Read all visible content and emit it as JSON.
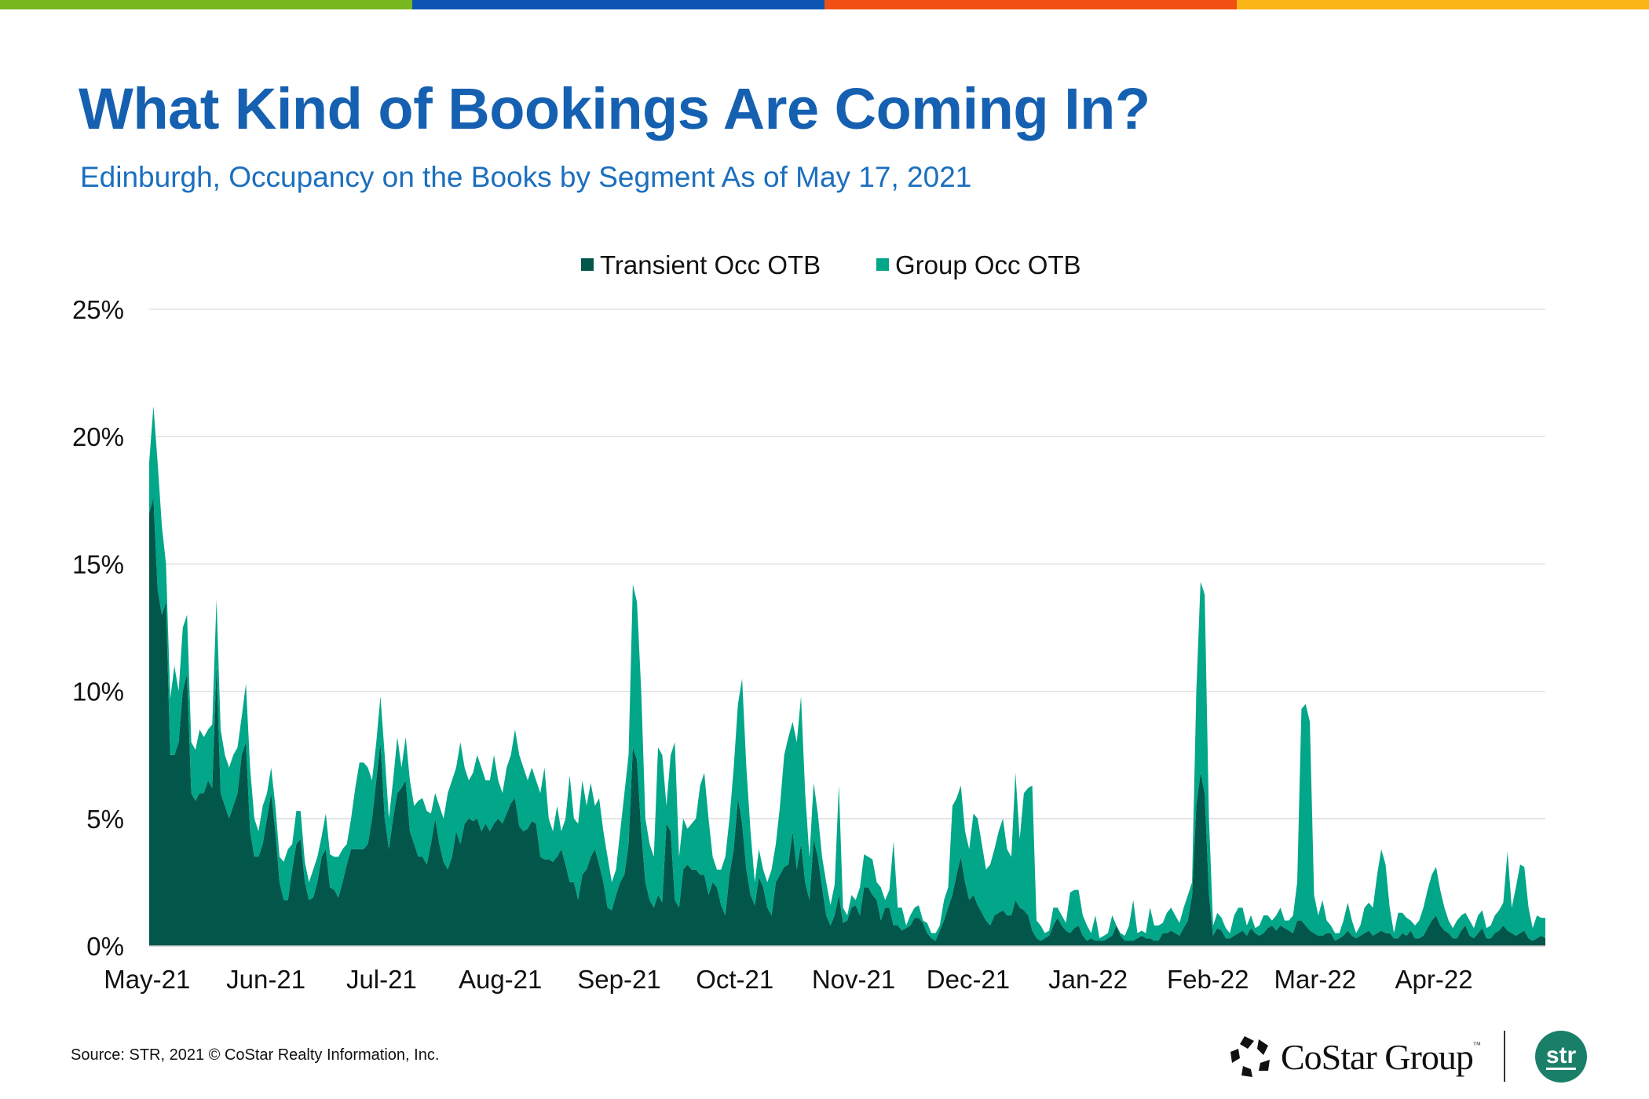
{
  "top_bar_colors": [
    "#78b81e",
    "#0c56b2",
    "#f05014",
    "#fbb516"
  ],
  "header": {
    "title": "What Kind of Bookings Are Coming In?",
    "subtitle": "Edinburgh, Occupancy on the Books by Segment As of May 17, 2021"
  },
  "footer": {
    "source": "Source: STR, 2021 © CoStar Realty Information, Inc.",
    "logo_costar": "CoStar Group",
    "logo_tm": "™",
    "logo_str": "str"
  },
  "chart_data": {
    "type": "area",
    "stacked": true,
    "title": "",
    "xlabel": "",
    "ylabel": "",
    "ylim": [
      0,
      25
    ],
    "yticks": [
      0,
      5,
      10,
      15,
      20,
      25
    ],
    "ytick_labels": [
      "0%",
      "5%",
      "10%",
      "15%",
      "20%",
      "25%"
    ],
    "grid": true,
    "legend_position": "top-center",
    "x_domain": [
      0,
      332
    ],
    "xticks": [
      -0.5,
      27.75,
      55.25,
      83.5,
      111.75,
      139.25,
      167.5,
      194.75,
      223.25,
      251.75,
      277.25,
      305.5
    ],
    "xtick_labels": [
      "May-21",
      "Jun-21",
      "Jul-21",
      "Aug-21",
      "Sep-21",
      "Oct-21",
      "Nov-21",
      "Dec-21",
      "Jan-22",
      "Feb-22",
      "Mar-22",
      "Apr-22"
    ],
    "series": [
      {
        "name": "Transient Occ OTB",
        "color": "#02564a",
        "values": [
          17,
          17.6,
          14,
          13,
          13.5,
          7.5,
          7.5,
          8,
          10,
          10.7,
          6,
          5.7,
          6,
          6,
          6.5,
          6.2,
          11,
          6,
          5.5,
          5,
          5.5,
          6,
          7.5,
          8,
          4.5,
          3.5,
          3.5,
          4,
          5,
          6,
          4.5,
          2.5,
          1.8,
          1.8,
          3,
          4,
          4.2,
          2.5,
          1.8,
          1.9,
          2.5,
          3.5,
          3.8,
          2.3,
          2.2,
          1.9,
          2.5,
          3.2,
          3.8,
          3.8,
          3.8,
          3.8,
          4,
          5,
          6.5,
          8,
          5,
          3.8,
          5,
          6,
          6.2,
          6.5,
          4.5,
          4,
          3.5,
          3.5,
          3.2,
          4,
          5,
          4,
          3.3,
          3,
          3.5,
          4.5,
          4,
          4.8,
          5,
          4.9,
          5,
          4.5,
          4.8,
          4.5,
          4.8,
          5,
          4.8,
          5.2,
          5.6,
          5.8,
          4.7,
          4.5,
          4.6,
          4.9,
          4.8,
          3.5,
          3.4,
          3.4,
          3.3,
          3.5,
          3.8,
          3.2,
          2.5,
          2.5,
          1.8,
          2.8,
          3,
          3.5,
          3.8,
          3.2,
          2.5,
          1.5,
          1.4,
          2,
          2.5,
          2.8,
          4,
          7.8,
          7.3,
          4.5,
          2.5,
          1.8,
          1.5,
          2,
          1.7,
          4.8,
          4.5,
          1.8,
          1.5,
          3,
          3.2,
          3,
          3,
          2.8,
          2.8,
          2,
          2.5,
          2.3,
          1.6,
          1.2,
          2.8,
          3.8,
          5.8,
          4.8,
          3,
          2,
          1.6,
          2.7,
          2.3,
          1.5,
          1.2,
          2.5,
          2.8,
          3.1,
          3.2,
          4.5,
          3,
          4,
          2.5,
          1.8,
          4.2,
          3.5,
          2.3,
          1.2,
          0.8,
          1.2,
          2,
          0.9,
          1,
          1.5,
          1.6,
          1.2,
          2.3,
          2.3,
          2,
          1.8,
          1,
          1.5,
          1.5,
          0.8,
          0.8,
          0.6,
          0.7,
          0.8,
          1.1,
          1.1,
          0.9,
          0.5,
          0.3,
          0.2,
          0.6,
          1,
          1.5,
          2,
          2.8,
          3.5,
          2.5,
          1.8,
          2,
          1.6,
          1.3,
          1,
          0.8,
          1.2,
          1.3,
          1.4,
          1.2,
          1.2,
          1.8,
          1.5,
          1.4,
          1.2,
          0.6,
          0.3,
          0.2,
          0.3,
          0.4,
          0.8,
          1.1,
          0.8,
          0.6,
          0.5,
          0.7,
          0.8,
          0.4,
          0.2,
          0.3,
          0.2,
          0.2,
          0.2,
          0.3,
          0.4,
          0.8,
          0.4,
          0.2,
          0.2,
          0.2,
          0.3,
          0.4,
          0.3,
          0.3,
          0.2,
          0.2,
          0.5,
          0.5,
          0.6,
          0.5,
          0.4,
          0.7,
          1,
          2,
          5.5,
          6.8,
          6,
          2,
          0.4,
          0.7,
          0.6,
          0.3,
          0.3,
          0.4,
          0.5,
          0.6,
          0.4,
          0.7,
          0.5,
          0.4,
          0.5,
          0.7,
          0.8,
          0.6,
          0.8,
          0.7,
          0.6,
          0.5,
          1,
          1,
          0.8,
          0.6,
          0.5,
          0.4,
          0.4,
          0.5,
          0.5,
          0.2,
          0.3,
          0.4,
          0.6,
          0.4,
          0.3,
          0.4,
          0.5,
          0.6,
          0.4,
          0.5,
          0.6,
          0.5,
          0.5,
          0.3,
          0.3,
          0.5,
          0.4,
          0.6,
          0.3,
          0.3,
          0.4,
          0.7,
          1,
          1.2,
          0.8,
          0.6,
          0.5,
          0.3,
          0.3,
          0.6,
          0.8,
          0.4,
          0.3,
          0.5,
          0.7,
          0.3,
          0.3,
          0.5,
          0.6,
          0.8,
          0.6,
          0.5,
          0.4,
          0.5,
          0.6,
          0.3,
          0.2,
          0.3,
          0.4,
          0.3
        ]
      },
      {
        "name": "Group Occ OTB",
        "color": "#02a689",
        "values": [
          2,
          3.6,
          5,
          3.5,
          1.5,
          2.2,
          3.5,
          2,
          2.5,
          2.3,
          2,
          2,
          2.5,
          2.2,
          2,
          2.5,
          2.6,
          2.5,
          2,
          2,
          2,
          1.8,
          1.5,
          2.3,
          2.5,
          1.5,
          1,
          1.5,
          1,
          1,
          1,
          1,
          1.5,
          2,
          1,
          1.3,
          1.1,
          0.8,
          0.7,
          1.1,
          1,
          0.8,
          1.4,
          1.3,
          1.3,
          1.6,
          1.3,
          0.8,
          1.2,
          2.4,
          3.4,
          3.4,
          3,
          1.5,
          1.5,
          1.8,
          2.5,
          1.2,
          1.5,
          2.2,
          0.8,
          1.7,
          2,
          1.5,
          2.2,
          2.3,
          2.1,
          1.2,
          1,
          1.5,
          1.7,
          3,
          3,
          2.5,
          4,
          2.2,
          1.5,
          1.9,
          2.5,
          2.5,
          1.7,
          2,
          2.7,
          1.5,
          1.2,
          1.8,
          1.9,
          2.7,
          2.8,
          2.5,
          1.9,
          2.1,
          1.7,
          2.5,
          3.6,
          1.6,
          1.2,
          2,
          0.7,
          1.8,
          4.2,
          2.5,
          3,
          3.7,
          2.5,
          2.9,
          1.7,
          2.6,
          2,
          2,
          1.1,
          1,
          2,
          3.2,
          3.5,
          6.4,
          6.2,
          5.5,
          2.5,
          2.2,
          2,
          5.8,
          5.8,
          0.7,
          3,
          6.2,
          2,
          2,
          1.4,
          1.8,
          2,
          3.5,
          4,
          3,
          1,
          0.7,
          1.4,
          2.3,
          2.2,
          3.2,
          3.7,
          5.7,
          4,
          2.5,
          0.9,
          1.1,
          0.7,
          1,
          1.8,
          1.5,
          2.7,
          4.4,
          5,
          4.3,
          5,
          5.8,
          3.5,
          1.7,
          2.2,
          1.7,
          1.2,
          1.3,
          0.8,
          1.2,
          4.3,
          0.6,
          0.2,
          0.5,
          0.2,
          1.1,
          1.3,
          1.2,
          1.4,
          0.7,
          1.3,
          0.3,
          0.7,
          3.3,
          0.7,
          0.9,
          0.1,
          0.4,
          0.4,
          0.5,
          0.1,
          0.4,
          0.2,
          0.3,
          0.2,
          0.8,
          0.8,
          3.5,
          3,
          2.8,
          2,
          2,
          3.2,
          3.4,
          2.7,
          2,
          2.4,
          2.6,
          3.2,
          3.6,
          2.6,
          2.3,
          5,
          2.7,
          4.6,
          5,
          5.7,
          0.7,
          0.6,
          0.2,
          0.2,
          0.7,
          0.4,
          0.4,
          0.3,
          1.6,
          1.5,
          1.4,
          0.8,
          0.6,
          0.2,
          1,
          0.1,
          0.2,
          0.2,
          0.8,
          0,
          0.1,
          0.2,
          0.6,
          1.6,
          0.2,
          0.2,
          0.2,
          1.2,
          0.6,
          0.6,
          0.4,
          0.8,
          0.9,
          0.7,
          0.5,
          0.8,
          1,
          0.5,
          4.5,
          7.5,
          7.8,
          3,
          0.4,
          0.6,
          0.5,
          0.4,
          0.2,
          0.8,
          1,
          0.9,
          0.4,
          0.5,
          0.2,
          0.4,
          0.7,
          0.5,
          0.2,
          0.6,
          0.7,
          0.3,
          0.4,
          0.7,
          1.5,
          8.3,
          8.7,
          8.2,
          1.5,
          0.8,
          1.4,
          0.5,
          0.3,
          0.3,
          0.2,
          0.6,
          1.1,
          0.6,
          0.2,
          0.4,
          1,
          1.1,
          1.1,
          2.3,
          3.2,
          2.7,
          1,
          0.2,
          1,
          0.8,
          0.7,
          0.4,
          0.5,
          0.7,
          1.1,
          1.5,
          1.8,
          1.9,
          1.4,
          0.9,
          0.5,
          0.4,
          0.7,
          0.6,
          0.5,
          0.6,
          0.4,
          0.7,
          0.7,
          0.4,
          0.5,
          0.7,
          0.8,
          0.9,
          3.1,
          1,
          1.9,
          2.7,
          2.5,
          1.2,
          0.5,
          0.9,
          0.7,
          0.8
        ]
      }
    ]
  }
}
